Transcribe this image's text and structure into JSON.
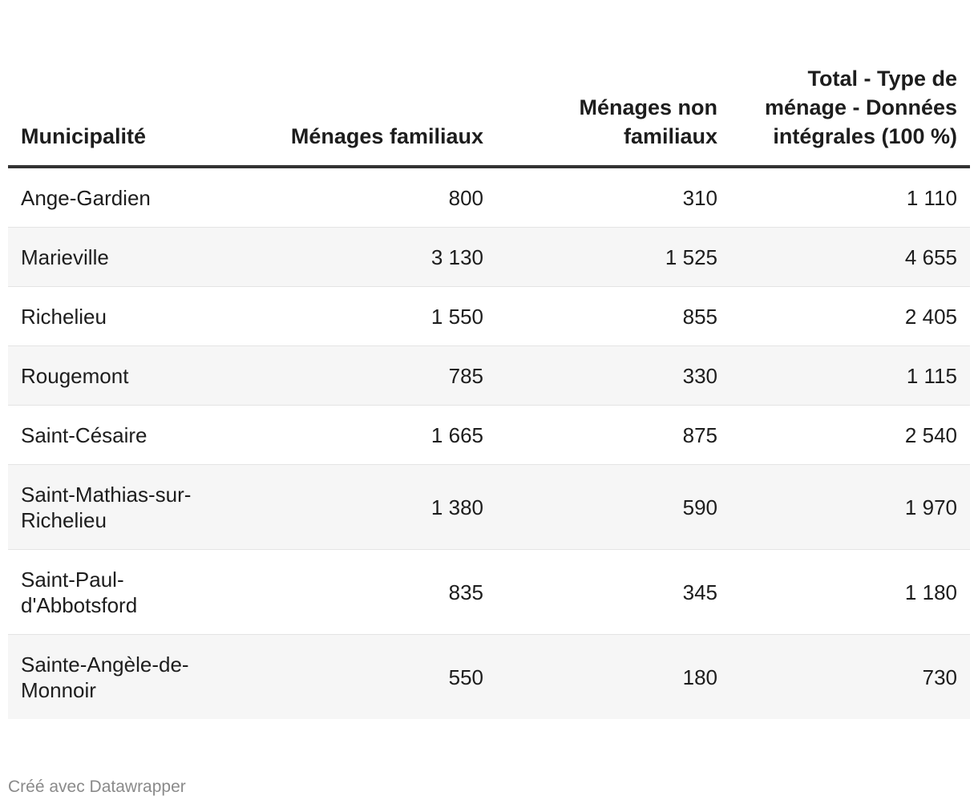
{
  "chart_data": {
    "type": "table",
    "columns": [
      "Municipalité",
      "Ménages familiaux",
      "Ménages non familiaux",
      "Total - Type de ménage - Données intégrales (100 %)"
    ],
    "rows": [
      {
        "municipality": "Ange-Gardien",
        "familiaux": "800",
        "non_familiaux": "310",
        "total": "1 110"
      },
      {
        "municipality": "Marieville",
        "familiaux": "3 130",
        "non_familiaux": "1 525",
        "total": "4 655"
      },
      {
        "municipality": "Richelieu",
        "familiaux": "1 550",
        "non_familiaux": "855",
        "total": "2 405"
      },
      {
        "municipality": "Rougemont",
        "familiaux": "785",
        "non_familiaux": "330",
        "total": "1 115"
      },
      {
        "municipality": "Saint-Césaire",
        "familiaux": "1 665",
        "non_familiaux": "875",
        "total": "2 540"
      },
      {
        "municipality": "Saint-Mathias-sur-Richelieu",
        "familiaux": "1 380",
        "non_familiaux": "590",
        "total": "1 970"
      },
      {
        "municipality": "Saint-Paul-d'Abbotsford",
        "familiaux": "835",
        "non_familiaux": "345",
        "total": "1 180"
      },
      {
        "municipality": "Sainte-Angèle-de-Monnoir",
        "familiaux": "550",
        "non_familiaux": "180",
        "total": "730"
      }
    ]
  },
  "footer": {
    "credit": "Créé avec Datawrapper"
  },
  "colors": {
    "header_rule": "#333333",
    "row_alt_bg": "#f6f6f6",
    "row_divider": "#e4e4e4",
    "footer_text": "#8a8a8a"
  }
}
